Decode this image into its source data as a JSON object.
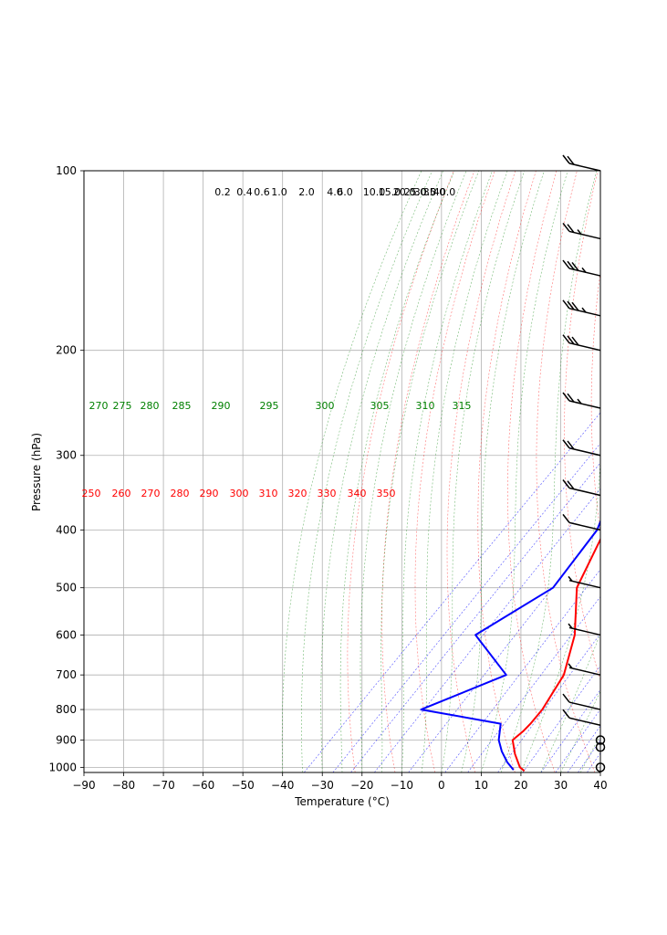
{
  "chart_data": {
    "type": "line",
    "title": "",
    "xlabel": "Temperature (°C)",
    "ylabel": "Pressure (hPa)",
    "xlim": [
      -90,
      40
    ],
    "ylim": [
      1020,
      100
    ],
    "x_ticks": [
      "−90",
      "−80",
      "−70",
      "−60",
      "−50",
      "−40",
      "−30",
      "−20",
      "−10",
      "0",
      "10",
      "20",
      "30",
      "40"
    ],
    "x_tick_values": [
      -90,
      -80,
      -70,
      -60,
      -50,
      -40,
      -30,
      -20,
      -10,
      0,
      10,
      20,
      30,
      40
    ],
    "y_ticks": [
      "100",
      "200",
      "300",
      "400",
      "500",
      "600",
      "700",
      "800",
      "900",
      "1000"
    ],
    "y_tick_values": [
      100,
      200,
      300,
      400,
      500,
      600,
      700,
      800,
      900,
      1000
    ],
    "grid": true,
    "series": [
      {
        "name": "Temperature",
        "color": "#ff0000",
        "points": [
          [
            1014,
            20.5
          ],
          [
            1000,
            18.5
          ],
          [
            950,
            14
          ],
          [
            900,
            10
          ],
          [
            870,
            10.5
          ],
          [
            845,
            10.5
          ],
          [
            800,
            10
          ],
          [
            700,
            7
          ],
          [
            600,
            0
          ],
          [
            500,
            -11
          ],
          [
            400,
            -18
          ],
          [
            350,
            -24
          ],
          [
            300,
            -32
          ],
          [
            250,
            -41
          ],
          [
            200,
            -52
          ],
          [
            180,
            -59
          ],
          [
            150,
            -64
          ],
          [
            130,
            -65
          ],
          [
            100,
            -65
          ]
        ]
      },
      {
        "name": "Dewpoint",
        "color": "#0000ff",
        "points": [
          [
            1010,
            17.5
          ],
          [
            980,
            14
          ],
          [
            940,
            10
          ],
          [
            900,
            6.5
          ],
          [
            845,
            3
          ],
          [
            800,
            -20.5
          ],
          [
            700,
            -7.5
          ],
          [
            600,
            -25
          ],
          [
            500,
            -17
          ],
          [
            400,
            -20
          ],
          [
            350,
            -25
          ],
          [
            300,
            -36
          ]
        ]
      }
    ],
    "mixing_ratio_lines": [
      {
        "label": "0.2",
        "value": 0.2
      },
      {
        "label": "0.4",
        "value": 0.4
      },
      {
        "label": "0.6",
        "value": 0.6
      },
      {
        "label": "1.0",
        "value": 1.0
      },
      {
        "label": "2.0",
        "value": 2.0
      },
      {
        "label": "4.0",
        "value": 4.0
      },
      {
        "label": "6.0",
        "value": 6.0
      },
      {
        "label": "10.0",
        "value": 10.0
      },
      {
        "label": "15.0",
        "value": 15.0
      },
      {
        "label": "20.0",
        "value": 20.0
      },
      {
        "label": "25.0",
        "value": 25.0
      },
      {
        "label": "30.0",
        "value": 30.0
      },
      {
        "label": "35.0",
        "value": 35.0
      },
      {
        "label": "40.0",
        "value": 40.0
      }
    ],
    "dry_adiabat_labels": [
      "250",
      "260",
      "270",
      "280",
      "290",
      "300",
      "310",
      "320",
      "330",
      "340",
      "350"
    ],
    "moist_adiabat_labels": [
      "270",
      "275",
      "280",
      "285",
      "290",
      "295",
      "300",
      "305",
      "310",
      "315"
    ],
    "wind_barbs": [
      {
        "pressure": 1000,
        "speed_kt": 0
      },
      {
        "pressure": 925,
        "speed_kt": 0
      },
      {
        "pressure": 900,
        "speed_kt": 0
      },
      {
        "pressure": 850,
        "speed_kt": 10
      },
      {
        "pressure": 800,
        "speed_kt": 10
      },
      {
        "pressure": 700,
        "speed_kt": 5
      },
      {
        "pressure": 600,
        "speed_kt": 5
      },
      {
        "pressure": 500,
        "speed_kt": 5
      },
      {
        "pressure": 400,
        "speed_kt": 10
      },
      {
        "pressure": 350,
        "speed_kt": 20
      },
      {
        "pressure": 300,
        "speed_kt": 20
      },
      {
        "pressure": 250,
        "speed_kt": 25
      },
      {
        "pressure": 200,
        "speed_kt": 30
      },
      {
        "pressure": 175,
        "speed_kt": 35
      },
      {
        "pressure": 150,
        "speed_kt": 35
      },
      {
        "pressure": 130,
        "speed_kt": 25
      },
      {
        "pressure": 100,
        "speed_kt": 20
      }
    ],
    "colors": {
      "grid": "#b0b0b0",
      "dry_adiabat": "#ff0000",
      "moist_adiabat": "#008000",
      "mixing_ratio": "#0000ff"
    }
  }
}
